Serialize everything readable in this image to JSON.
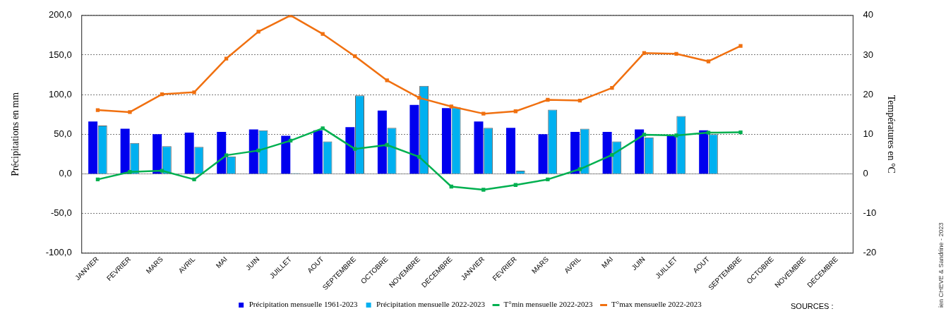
{
  "chart_data": {
    "type": "bar",
    "categories": [
      "JANVIER",
      "FEVRIER",
      "MARS",
      "AVRIL",
      "MAI",
      "JUIN",
      "JUILLET",
      "AOUT",
      "SEPTEMBRE",
      "OCTOBRE",
      "NOVEMBRE",
      "DECEMBRE",
      "JANVIER",
      "FEVRIER",
      "MARS",
      "AVRIL",
      "MAI",
      "JUIN",
      "JUILLET",
      "AOUT",
      "SEPTEMBRE",
      "OCTOBRE",
      "NOVEMBRE",
      "DECEMBRE"
    ],
    "series": [
      {
        "name": "Précipitation mensuelle 1961-2023",
        "color": "#0000ee",
        "values": [
          66,
          57,
          50,
          52,
          53,
          56,
          48,
          55,
          59,
          80,
          87,
          83,
          66,
          58,
          50,
          53,
          53,
          56,
          49,
          55,
          null,
          null,
          null,
          null
        ]
      },
      {
        "name": "Précipitation mensuelle 2022-2023",
        "color": "#00b0f0",
        "values": [
          61,
          39,
          35,
          34,
          22,
          55,
          1,
          41,
          99,
          58,
          111,
          84,
          58,
          4,
          81,
          57,
          41,
          46,
          73,
          50,
          null,
          null,
          null,
          null
        ]
      },
      {
        "name": "T°min mensuelle 2022-2023",
        "type": "line",
        "axis": "y2",
        "color": "#00b050",
        "values": [
          -1.4,
          0.5,
          0.8,
          -1.4,
          4.7,
          5.9,
          8.4,
          11.5,
          6.3,
          7.3,
          4.3,
          -3.2,
          -4.0,
          -2.8,
          -1.4,
          1.2,
          4.8,
          9.9,
          9.7,
          10.4,
          10.5,
          null,
          null,
          null
        ]
      },
      {
        "name": "T°max mensuelle 2022-2023",
        "type": "line",
        "axis": "y2",
        "color": "#f07010",
        "values": [
          16.1,
          15.6,
          20.1,
          20.6,
          29.1,
          35.9,
          40.0,
          35.3,
          29.7,
          23.6,
          19.2,
          17.0,
          15.2,
          15.8,
          18.7,
          18.5,
          21.7,
          30.5,
          30.3,
          28.4,
          32.3,
          null,
          null,
          null
        ]
      }
    ],
    "ylabel": "Précipitations en mm",
    "y2label": "Températures en °C",
    "ylim": [
      -100,
      200
    ],
    "yticks": [
      {
        "value": -100,
        "label": "-100,0"
      },
      {
        "value": -50,
        "label": "-50,0"
      },
      {
        "value": 0,
        "label": "0,0"
      },
      {
        "value": 50,
        "label": "50,0"
      },
      {
        "value": 100,
        "label": "100,0"
      },
      {
        "value": 150,
        "label": "150,0"
      },
      {
        "value": 200,
        "label": "200,0"
      }
    ],
    "y2lim": [
      -20,
      40
    ],
    "y2ticks": [
      -20,
      -10,
      0,
      10,
      20,
      30,
      40
    ],
    "grid": "y",
    "legend": "bottom",
    "marker": "square",
    "annotations": [
      "SOURCES :",
      "ien CHEVE  & Sandrine - 2023"
    ]
  }
}
